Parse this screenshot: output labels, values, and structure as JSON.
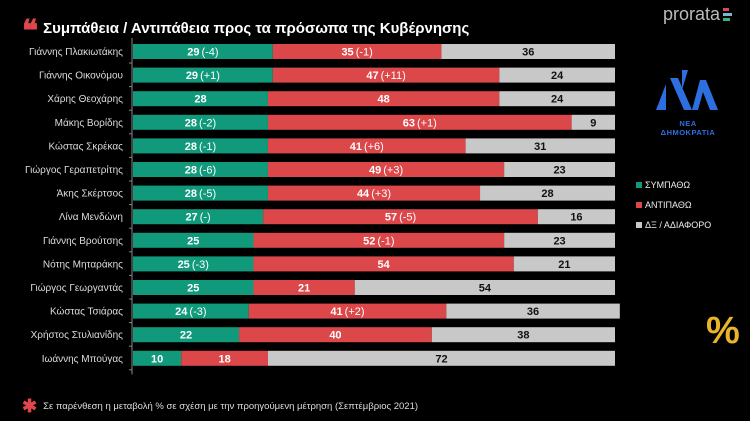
{
  "header": {
    "title": "Συμπάθεια / Αντιπάθεια προς τα πρόσωπα της Κυβέρνησης",
    "brand": "prorata",
    "party_logo_text": "ΝΕΑ ΔΗΜΟΚΡΑΤΙΑ",
    "percent_symbol": "%"
  },
  "footnote": "Σε παρένθεση η μεταβολή % σε σχέση με την προηγούμενη μέτρηση (Σεπτέμβριος 2021)",
  "colors": {
    "sympatho": "#109a7b",
    "antipatho": "#dc474a",
    "dx": "#c8c8c8",
    "accent": "#e0474c"
  },
  "chart_data": {
    "type": "bar",
    "orientation": "horizontal",
    "stacked": true,
    "legend_position": "right",
    "categories": [
      "Γιάννης Πλακιωτάκης",
      "Γιάννης Οικονόμου",
      "Χάρης Θεοχάρης",
      "Μάκης Βορίδης",
      "Κώστας Σκρέκας",
      "Γιώργος Γεραπετρίτης",
      "Άκης Σκέρτσος",
      "Λίνα Μενδώνη",
      "Γιάννης Βρούτσης",
      "Νότης Μηταράκης",
      "Γιώργος Γεωργαντάς",
      "Κώστας Τσιάρας",
      "Χρήστος Στυλιανίδης",
      "Ιωάννης Μπούγας"
    ],
    "series": [
      {
        "name": "ΣΥΜΠΑΘΩ",
        "color": "#109a7b",
        "values": [
          29,
          29,
          28,
          28,
          28,
          28,
          28,
          27,
          25,
          25,
          25,
          24,
          22,
          10
        ],
        "changes": [
          "(-4)",
          "(+1)",
          "",
          "(-2)",
          "(-1)",
          "(-6)",
          "(-5)",
          "(-)",
          "",
          "(-3)",
          "",
          "(-3)",
          "",
          ""
        ]
      },
      {
        "name": "ΑΝΤΙΠΑΘΩ",
        "color": "#dc474a",
        "values": [
          35,
          47,
          48,
          63,
          41,
          49,
          44,
          57,
          52,
          54,
          21,
          41,
          40,
          18
        ],
        "changes": [
          "(-1)",
          "(+11)",
          "",
          "(+1)",
          "(+6)",
          "(+3)",
          "(+3)",
          "(-5)",
          "(-1)",
          "",
          "",
          "(+2)",
          "",
          ""
        ]
      },
      {
        "name": "ΔΞ / ΑΔΙΑΦΟΡΟ",
        "color": "#c8c8c8",
        "values": [
          36,
          24,
          24,
          9,
          31,
          23,
          28,
          16,
          23,
          21,
          54,
          36,
          38,
          72
        ],
        "changes": [
          "",
          "",
          "",
          "",
          "",
          "",
          "",
          "",
          "",
          "",
          "",
          "",
          "",
          ""
        ]
      }
    ]
  }
}
